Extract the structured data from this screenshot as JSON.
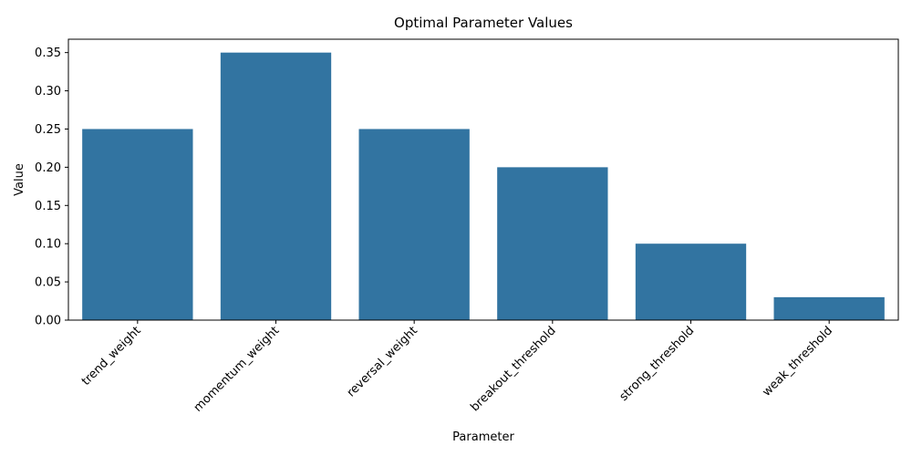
{
  "chart_data": {
    "type": "bar",
    "title": "Optimal Parameter Values",
    "xlabel": "Parameter",
    "ylabel": "Value",
    "categories": [
      "trend_weight",
      "momentum_weight",
      "reversal_weight",
      "breakout_threshold",
      "strong_threshold",
      "weak_threshold"
    ],
    "values": [
      0.25,
      0.35,
      0.25,
      0.2,
      0.1,
      0.03
    ],
    "ylim": [
      0,
      0.3675
    ],
    "yticks": [
      "0.00",
      "0.05",
      "0.10",
      "0.15",
      "0.20",
      "0.25",
      "0.30",
      "0.35"
    ],
    "grid": false,
    "legend": "none",
    "bar_color": "#3274a1",
    "x_tick_rotation": "45 degrees"
  }
}
